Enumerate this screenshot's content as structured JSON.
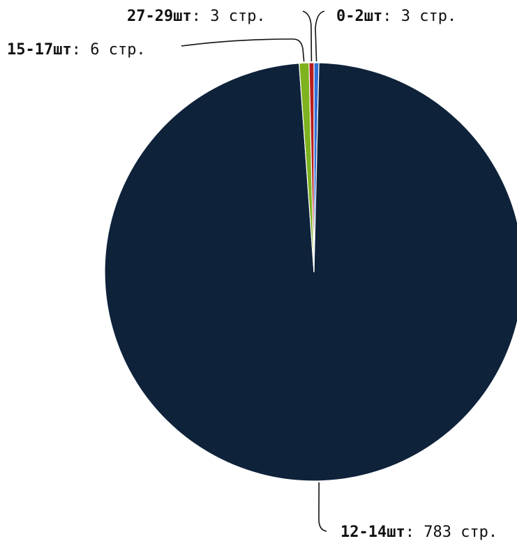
{
  "chart_data": {
    "type": "pie",
    "slices": [
      {
        "label": "0-2шт",
        "value": 3,
        "value_text": ": 3 стр.",
        "color": "#2f6fd6"
      },
      {
        "label": "12-14шт",
        "value": 783,
        "value_text": ": 783 стр.",
        "color": "#0e223a"
      },
      {
        "label": "15-17шт",
        "value": 6,
        "value_text": ": 6 стр.",
        "color": "#7fb21f"
      },
      {
        "label": "27-29шт",
        "value": 3,
        "value_text": ": 3 стр.",
        "color": "#b81d1d"
      }
    ],
    "start_angle_deg": 90,
    "direction": "clockwise",
    "slice_separator_color": "#ffffff",
    "legend": "none"
  }
}
